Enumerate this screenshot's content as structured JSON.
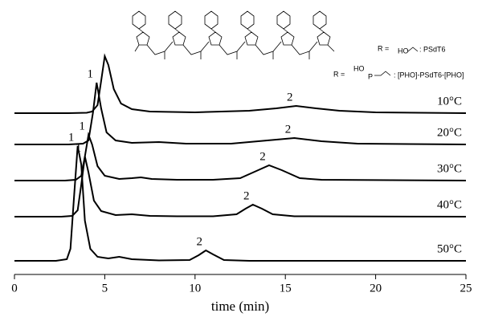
{
  "chart_data": {
    "type": "line",
    "x_label": "time (min)",
    "xlim": [
      0,
      25
    ],
    "xticks": [
      0,
      5,
      10,
      15,
      20,
      25
    ],
    "color": "#000000",
    "series": [
      {
        "name": "10°C",
        "x": [
          0,
          3,
          4,
          4.3,
          4.6,
          4.8,
          5.0,
          5.2,
          5.5,
          5.9,
          6.5,
          7.5,
          10,
          13,
          14.5,
          15.6,
          16.7,
          18,
          20,
          25
        ],
        "values": [
          0,
          0,
          0.5,
          2,
          10,
          40,
          71,
          60,
          30,
          12,
          5,
          2,
          1,
          3,
          6,
          9,
          6,
          3,
          1,
          0
        ],
        "annotations": [
          {
            "text": "2",
            "x": 15.6
          }
        ]
      },
      {
        "name": "20°C",
        "x": [
          0,
          3,
          3.8,
          4.1,
          4.35,
          4.55,
          4.8,
          5.1,
          5.6,
          6.5,
          8,
          9.5,
          12,
          14,
          15.5,
          17,
          19,
          25
        ],
        "values": [
          0,
          0,
          1,
          5,
          40,
          77,
          45,
          15,
          5,
          2,
          3,
          1,
          1,
          5,
          8,
          4,
          1,
          0
        ],
        "annotations": [
          {
            "text": "1",
            "x": 4.55
          },
          {
            "text": "2",
            "x": 15.5
          }
        ]
      },
      {
        "name": "30°C",
        "x": [
          0,
          2.8,
          3.4,
          3.7,
          3.9,
          4.1,
          4.3,
          4.6,
          5.0,
          5.8,
          6.5,
          7,
          7.6,
          9,
          11,
          12.5,
          13.4,
          14.1,
          14.8,
          15.8,
          17,
          25
        ],
        "values": [
          0,
          0,
          1,
          6,
          30,
          57,
          45,
          18,
          6,
          2,
          3,
          4,
          2,
          1,
          1,
          3,
          12,
          19,
          13,
          3,
          1,
          0
        ],
        "annotations": [
          {
            "text": "1",
            "x": 4.1
          },
          {
            "text": "2",
            "x": 14.1
          }
        ]
      },
      {
        "name": "40°C",
        "x": [
          0,
          2.6,
          3.2,
          3.5,
          3.7,
          3.9,
          4.1,
          4.4,
          4.8,
          5.6,
          6.5,
          7.5,
          9,
          11,
          12.3,
          12.8,
          13.2,
          13.7,
          14.3,
          15.5,
          25
        ],
        "values": [
          0,
          0,
          1,
          8,
          40,
          75,
          55,
          20,
          7,
          2,
          3,
          1,
          0.5,
          0.5,
          3,
          10,
          15,
          10,
          3,
          0.5,
          0
        ],
        "annotations": [
          {
            "text": "1",
            "x": 3.9
          },
          {
            "text": "2",
            "x": 13.2
          }
        ]
      },
      {
        "name": "50°C",
        "x": [
          0,
          2.3,
          2.9,
          3.1,
          3.3,
          3.5,
          3.7,
          3.9,
          4.2,
          4.6,
          5.2,
          5.8,
          6.5,
          8,
          9.7,
          10.2,
          10.6,
          11.0,
          11.6,
          13,
          25
        ],
        "values": [
          0,
          0,
          2,
          15,
          80,
          143,
          120,
          50,
          15,
          5,
          3,
          5,
          2,
          0.5,
          1,
          7,
          13,
          8,
          1,
          0,
          0
        ],
        "annotations": [
          {
            "text": "1",
            "x": 3.5
          },
          {
            "text": "2",
            "x": 10.6
          }
        ]
      }
    ]
  },
  "structure": {
    "r_label": "R =",
    "r1_group": "HO",
    "r1_name": ": PSdT6",
    "r2_label": "R =",
    "r2_group": "HO",
    "r2_p": "P",
    "r2_name": ": [PHO]-PSdT6-[PHO]"
  }
}
